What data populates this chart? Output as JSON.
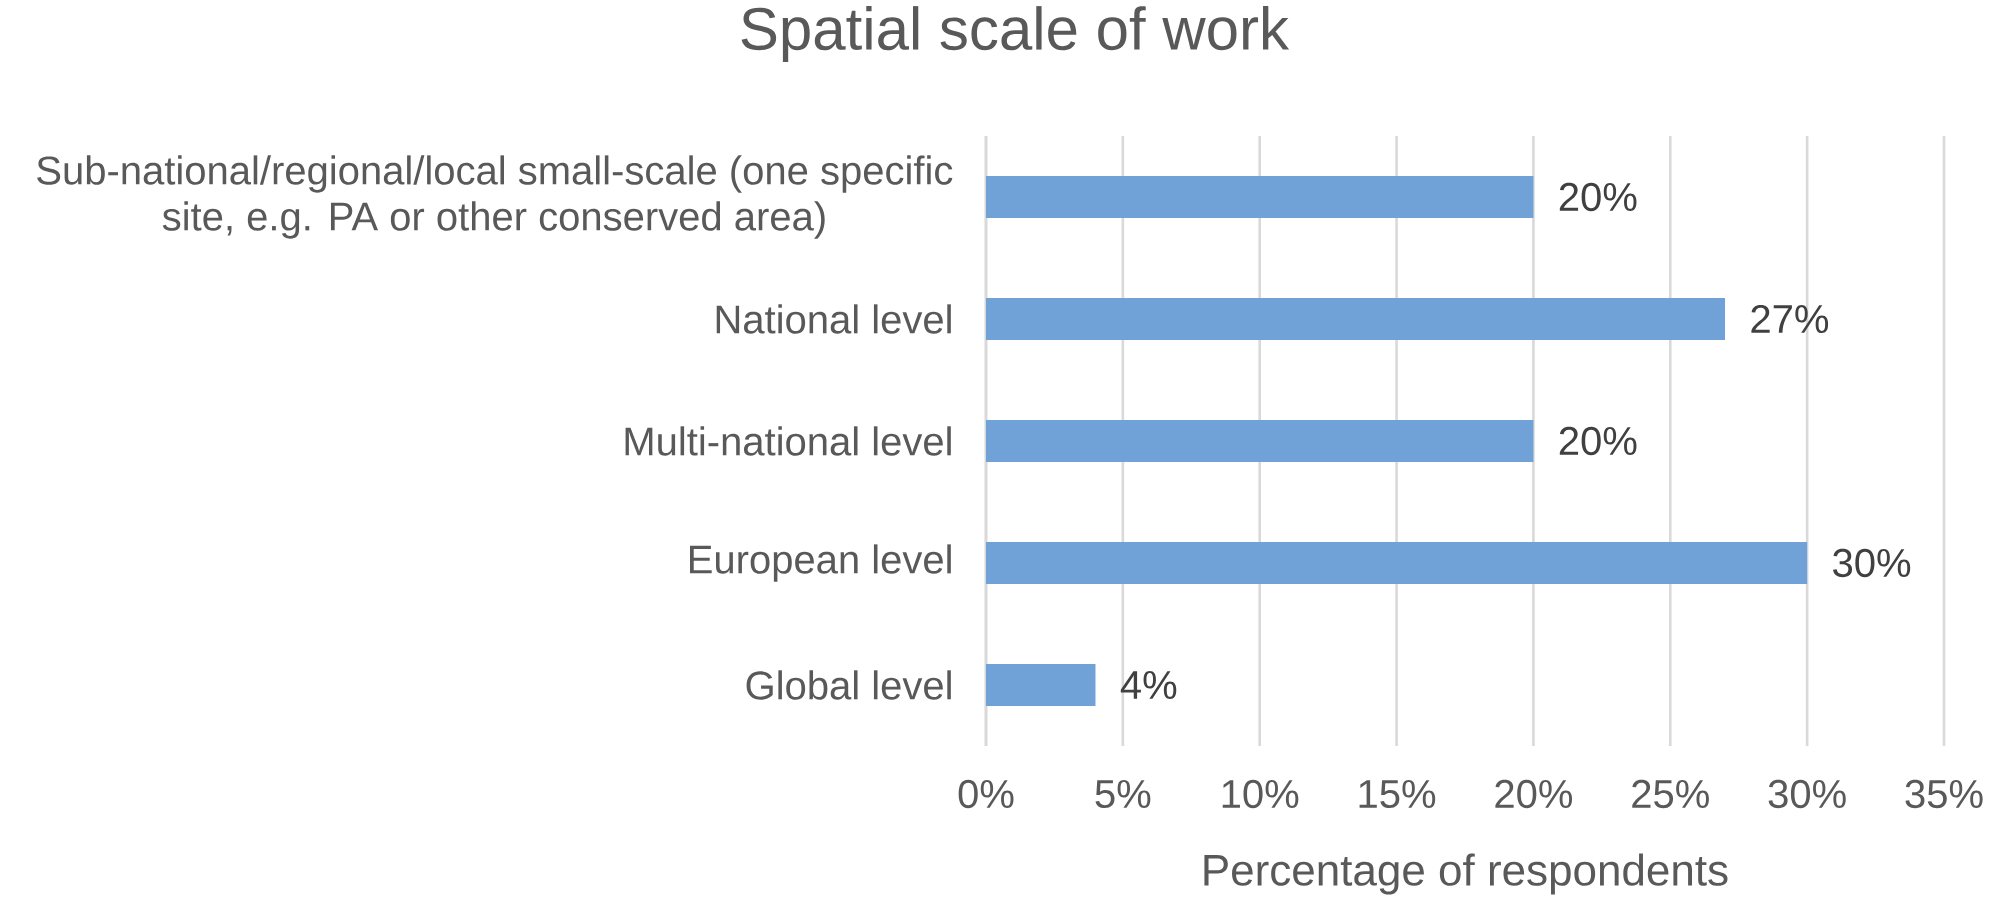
{
  "chart_data": {
    "type": "bar",
    "orientation": "horizontal",
    "title": "Spatial scale of work",
    "xlabel": "Percentage of respondents",
    "categories": [
      "Sub-national/regional/local small-scale (one specific site, e.g. PA or other conserved area)",
      "National level",
      "Multi-national level",
      "European level",
      "Global level"
    ],
    "values": [
      20,
      27,
      20,
      30,
      4
    ],
    "value_labels": [
      "20%",
      "27%",
      "20%",
      "30%",
      "4%"
    ],
    "color": "#70a1d7",
    "xlim": [
      0,
      35
    ],
    "xticks": [
      {
        "value": 0,
        "label": "0%"
      },
      {
        "value": 5,
        "label": "5%"
      },
      {
        "value": 10,
        "label": "10%"
      },
      {
        "value": 15,
        "label": "15%"
      },
      {
        "value": 20,
        "label": "20%"
      },
      {
        "value": 25,
        "label": "25%"
      },
      {
        "value": 30,
        "label": "30%"
      },
      {
        "value": 35,
        "label": "35%"
      }
    ],
    "grid": "x"
  }
}
